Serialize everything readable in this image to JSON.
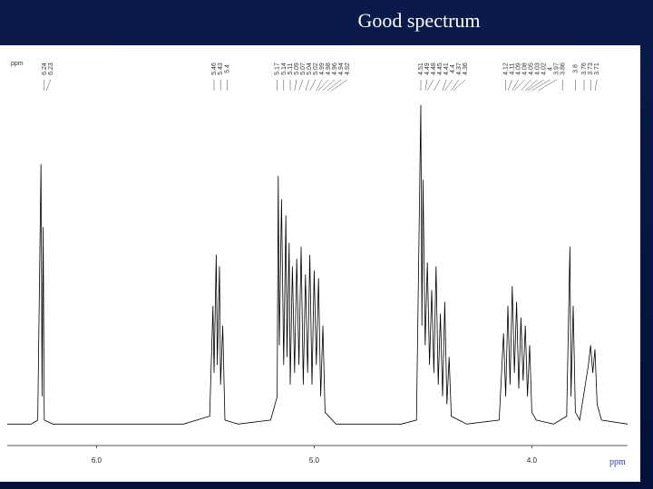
{
  "chart_data": {
    "type": "line",
    "title": "Good spectrum",
    "x_label": "ppm",
    "x": [
      6.41,
      6.3,
      6.27,
      6.255,
      6.25,
      6.245,
      6.24,
      6.2,
      5.6,
      5.48,
      5.465,
      5.46,
      5.45,
      5.445,
      5.435,
      5.43,
      5.42,
      5.41,
      5.35,
      5.2,
      5.17,
      5.165,
      5.16,
      5.15,
      5.14,
      5.13,
      5.125,
      5.115,
      5.11,
      5.1,
      5.09,
      5.08,
      5.07,
      5.06,
      5.05,
      5.04,
      5.03,
      5.02,
      5.01,
      5.0,
      4.99,
      4.98,
      4.97,
      4.96,
      4.95,
      4.9,
      4.6,
      4.53,
      4.51,
      4.505,
      4.5,
      4.49,
      4.48,
      4.47,
      4.46,
      4.45,
      4.44,
      4.43,
      4.42,
      4.41,
      4.4,
      4.39,
      4.38,
      4.37,
      4.3,
      4.15,
      4.13,
      4.12,
      4.11,
      4.1,
      4.09,
      4.08,
      4.07,
      4.06,
      4.05,
      4.04,
      4.03,
      4.02,
      4.01,
      4.0,
      3.98,
      3.9,
      3.84,
      3.825,
      3.82,
      3.81,
      3.8,
      3.78,
      3.74,
      3.73,
      3.72,
      3.71,
      3.7,
      3.68,
      3.56
    ],
    "series": [
      {
        "color": "#000000",
        "values": [
          5,
          5,
          6,
          71,
          12,
          55,
          6,
          5,
          5,
          7,
          35,
          18,
          48,
          20,
          45,
          15,
          30,
          6,
          5,
          6,
          12,
          68,
          25,
          62,
          20,
          58,
          22,
          51,
          15,
          45,
          18,
          47,
          20,
          50,
          15,
          43,
          18,
          48,
          15,
          44,
          20,
          42,
          12,
          30,
          8,
          5,
          5,
          6,
          86,
          30,
          67,
          25,
          46,
          20,
          39,
          18,
          45,
          15,
          33,
          12,
          36,
          10,
          22,
          7,
          5,
          6,
          28,
          12,
          35,
          15,
          40,
          18,
          36,
          14,
          32,
          16,
          30,
          12,
          25,
          8,
          6,
          5,
          7,
          50,
          12,
          35,
          8,
          6,
          20,
          25,
          18,
          24,
          10,
          6,
          5
        ]
      }
    ],
    "xlim": [
      6.41,
      3.56
    ],
    "ylim": [
      0,
      100
    ],
    "xticks": [
      {
        "value": 6,
        "label": "6.0"
      },
      {
        "value": 5,
        "label": "5.0"
      },
      {
        "value": 4,
        "label": "4.0"
      }
    ],
    "peak_labels": [
      6.24,
      6.23,
      5.46,
      5.43,
      5.4,
      5.17,
      5.14,
      5.11,
      5.09,
      5.07,
      5.04,
      5.02,
      4.99,
      4.98,
      4.96,
      4.94,
      4.92,
      4.51,
      4.49,
      4.48,
      4.45,
      4.41,
      4.4,
      4.37,
      4.36,
      4.12,
      4.11,
      4.09,
      4.08,
      4.05,
      4.03,
      4.02,
      4.0,
      3.97,
      3.86,
      3.8,
      3.76,
      3.73,
      3.71
    ]
  }
}
